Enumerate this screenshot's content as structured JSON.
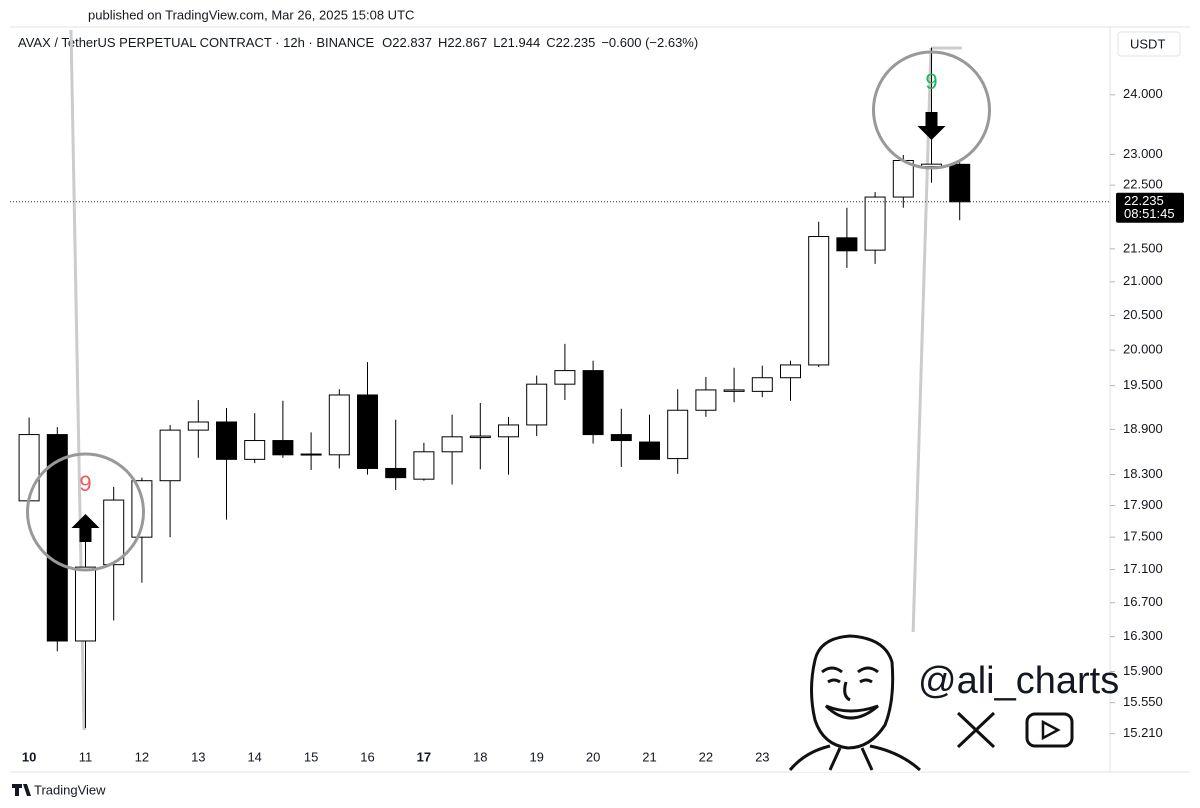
{
  "published": "published on TradingView.com, Mar 26, 2025 15:08 UTC",
  "footer": "TradingView",
  "watermark": "@ali_charts",
  "chart_data": {
    "type": "candlestick",
    "title": "AVAX / TetherUS PERPETUAL CONTRACT · 12h · BINANCE",
    "header_values": [
      "O22.837",
      "H22.867",
      "L21.944",
      "C22.235",
      "−0.600 (−2.63%)"
    ],
    "currency": "USDT",
    "countdown": "08:51:45",
    "categories": [
      "10",
      null,
      "11",
      null,
      "12",
      null,
      "13",
      null,
      "14",
      null,
      "15",
      null,
      "16",
      null,
      "17",
      null,
      "18",
      null,
      "19",
      null,
      "20",
      null,
      "21",
      null,
      "22",
      null,
      "23",
      null,
      null,
      null,
      null,
      null,
      null,
      null
    ],
    "open": [
      17.96,
      18.83,
      16.25,
      17.16,
      17.5,
      18.22,
      18.89,
      19.0,
      18.5,
      18.75,
      18.56,
      18.56,
      19.37,
      18.38,
      18.24,
      18.6,
      18.79,
      18.8,
      18.96,
      19.52,
      19.71,
      18.83,
      18.73,
      18.51,
      19.16,
      19.42,
      19.42,
      19.61,
      19.79,
      21.67,
      21.48,
      22.31,
      22.8,
      22.837
    ],
    "high": [
      19.06,
      18.93,
      17.47,
      18.14,
      18.26,
      18.96,
      19.3,
      19.19,
      19.12,
      19.29,
      18.86,
      19.45,
      19.83,
      19.03,
      18.72,
      19.1,
      19.26,
      19.07,
      19.64,
      20.09,
      19.85,
      19.18,
      19.1,
      19.45,
      19.62,
      19.75,
      19.78,
      19.85,
      21.92,
      22.14,
      22.39,
      22.99,
      24.82,
      22.867
    ],
    "low": [
      17.96,
      16.13,
      15.27,
      16.49,
      16.94,
      17.5,
      18.52,
      17.72,
      18.45,
      18.52,
      18.36,
      18.38,
      18.3,
      18.1,
      18.22,
      18.17,
      18.37,
      18.3,
      18.81,
      19.3,
      18.71,
      18.4,
      18.5,
      18.31,
      19.07,
      19.27,
      19.34,
      19.29,
      19.76,
      21.21,
      21.27,
      22.14,
      22.54,
      21.944
    ],
    "close": [
      18.83,
      16.25,
      17.13,
      17.97,
      18.22,
      18.89,
      19.0,
      18.5,
      18.75,
      18.56,
      18.57,
      19.37,
      18.38,
      18.26,
      18.6,
      18.8,
      18.81,
      18.96,
      19.52,
      19.71,
      18.83,
      18.75,
      18.5,
      19.16,
      19.44,
      19.44,
      19.61,
      19.79,
      21.69,
      21.47,
      22.31,
      22.9,
      22.84,
      22.235
    ],
    "up_color": "#ffffff",
    "down_color": "#000000",
    "log_scale": true,
    "ylim": [
      14.82,
      25.19
    ],
    "yticks": [
      {
        "value": 24,
        "label": "24.000"
      },
      {
        "value": 23,
        "label": "23.000"
      },
      {
        "value": 22.5,
        "label": "22.500"
      },
      {
        "value": 21.5,
        "label": "21.500"
      },
      {
        "value": 21,
        "label": "21.000"
      },
      {
        "value": 20.5,
        "label": "20.500"
      },
      {
        "value": 20,
        "label": "20.000"
      },
      {
        "value": 19.5,
        "label": "19.500"
      },
      {
        "value": 18.9,
        "label": "18.900"
      },
      {
        "value": 18.3,
        "label": "18.300"
      },
      {
        "value": 17.9,
        "label": "17.900"
      },
      {
        "value": 17.5,
        "label": "17.500"
      },
      {
        "value": 17.1,
        "label": "17.100"
      },
      {
        "value": 16.7,
        "label": "16.700"
      },
      {
        "value": 16.3,
        "label": "16.300"
      },
      {
        "value": 15.9,
        "label": "15.900"
      },
      {
        "value": 15.55,
        "label": "15.550"
      },
      {
        "value": 15.21,
        "label": "15.210"
      }
    ],
    "annotations": [
      {
        "text": "9",
        "color": "#f05a5a",
        "index": 2,
        "direction": "up"
      },
      {
        "text": "9",
        "color": "#22b45a",
        "index": 32,
        "direction": "down"
      }
    ]
  }
}
